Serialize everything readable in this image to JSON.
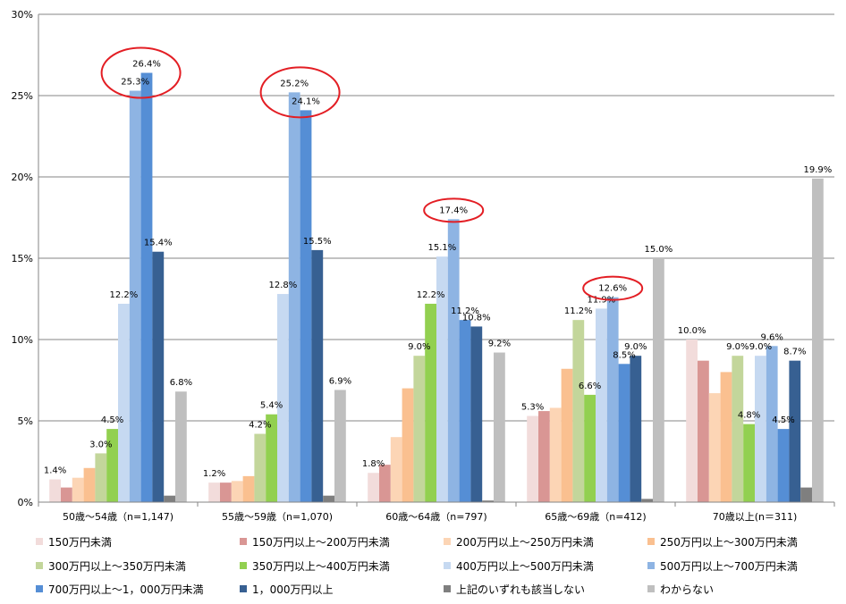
{
  "chart_data": {
    "type": "bar",
    "ylim": [
      0,
      30
    ],
    "y_ticks": [
      "0%",
      "5%",
      "10%",
      "15%",
      "20%",
      "25%",
      "30%"
    ],
    "grid": "horizontal",
    "legend_position": "bottom",
    "categories": [
      "50歳～54歳（n=1,147)",
      "55歳～59歳（n=1,070)",
      "60歳～64歳（n=797)",
      "65歳～69歳（n=412)",
      "70歳以上(n＝311)"
    ],
    "series": [
      {
        "name": "150万円未満",
        "color": "#F2DCDB",
        "values": [
          1.4,
          1.2,
          1.8,
          5.3,
          10.0
        ],
        "labels": [
          "1.4%",
          "1.2%",
          "1.8%",
          "5.3%",
          "10.0%"
        ]
      },
      {
        "name": "150万円以上～200万円未満",
        "color": "#D99694",
        "values": [
          0.9,
          1.2,
          2.3,
          5.6,
          8.7
        ],
        "labels": [
          "",
          "",
          "",
          "",
          ""
        ]
      },
      {
        "name": "200万円以上～250万円未満",
        "color": "#FCD5B5",
        "values": [
          1.5,
          1.3,
          4.0,
          5.8,
          6.7
        ],
        "labels": [
          "",
          "",
          "",
          "",
          ""
        ]
      },
      {
        "name": "250万円以上～300万円未満",
        "color": "#FAC090",
        "values": [
          2.1,
          1.6,
          7.0,
          8.2,
          8.0
        ],
        "labels": [
          "",
          "",
          "",
          "",
          ""
        ]
      },
      {
        "name": "300万円以上～350万円未満",
        "color": "#C3D69B",
        "values": [
          3.0,
          4.2,
          9.0,
          11.2,
          9.0
        ],
        "labels": [
          "3.0%",
          "4.2%",
          "9.0%",
          "11.2%",
          "9.0%"
        ]
      },
      {
        "name": "350万円以上～400万円未満",
        "color": "#92D050",
        "values": [
          4.5,
          5.4,
          12.2,
          6.6,
          4.8
        ],
        "labels": [
          "4.5%",
          "5.4%",
          "12.2%",
          "6.6%",
          "4.8%"
        ]
      },
      {
        "name": "400万円以上～500万円未満",
        "color": "#C6D9F1",
        "values": [
          12.2,
          12.8,
          15.1,
          11.9,
          9.0
        ],
        "labels": [
          "12.2%",
          "12.8%",
          "15.1%",
          "11.9%",
          "9.0%"
        ]
      },
      {
        "name": "500万円以上～700万円未満",
        "color": "#8EB4E3",
        "values": [
          25.3,
          25.2,
          17.4,
          12.6,
          9.6
        ],
        "labels": [
          "25.3%",
          "25.2%",
          "17.4%",
          "12.6%",
          "9.6%"
        ]
      },
      {
        "name": "700万円以上～1，000万円未満",
        "color": "#558ED5",
        "values": [
          26.4,
          24.1,
          11.2,
          8.5,
          4.5
        ],
        "labels": [
          "26.4%",
          "24.1%",
          "11.2%",
          "8.5%",
          "4.5%"
        ]
      },
      {
        "name": "1，000万円以上",
        "color": "#376092",
        "values": [
          15.4,
          15.5,
          10.8,
          9.0,
          8.7
        ],
        "labels": [
          "15.4%",
          "15.5%",
          "10.8%",
          "9.0%",
          "8.7%"
        ]
      },
      {
        "name": "上記のいずれも該当しない",
        "color": "#7F7F7F",
        "values": [
          0.4,
          0.4,
          0.1,
          0.2,
          0.9
        ],
        "labels": [
          "",
          "",
          "",
          "",
          ""
        ]
      },
      {
        "name": "わからない",
        "color": "#BFBFBF",
        "values": [
          6.8,
          6.9,
          9.2,
          15.0,
          19.9
        ],
        "labels": [
          "6.8%",
          "6.9%",
          "9.2%",
          "15.0%",
          "19.9%"
        ]
      }
    ],
    "highlights": [
      {
        "category": 0,
        "series": [
          7,
          8
        ]
      },
      {
        "category": 1,
        "series": [
          7,
          8
        ]
      },
      {
        "category": 2,
        "series": [
          7
        ]
      },
      {
        "category": 3,
        "series": [
          7
        ]
      }
    ],
    "highlight_color": "#E31E24"
  }
}
